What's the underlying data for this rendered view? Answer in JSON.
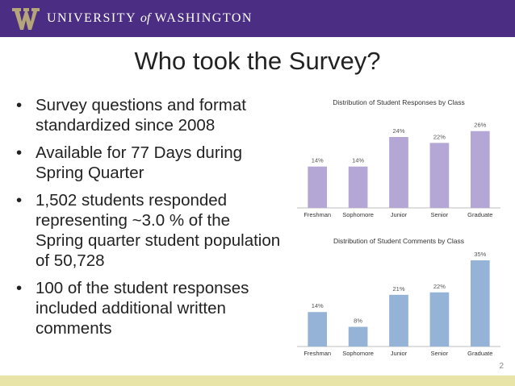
{
  "header": {
    "university_prefix": "UNIVERSITY",
    "university_of": "of",
    "university_suffix": "WASHINGTON",
    "bar_color": "#4b2e83",
    "logo_color": "#b7a57a"
  },
  "slide": {
    "title": "Who took the Survey?",
    "bullets": [
      "Survey questions and format standardized since 2008",
      "Available for 77 Days during Spring Quarter",
      "1,502 students responded representing ~3.0 % of the Spring quarter student population of 50,728",
      "100 of the student responses included additional written comments"
    ],
    "page_number": "2",
    "footer_color": "#e8e3a7"
  },
  "chart_data": [
    {
      "type": "bar",
      "title": "Distribution of Student Responses by Class",
      "categories": [
        "Freshman",
        "Sophomore",
        "Junior",
        "Senior",
        "Graduate"
      ],
      "values": [
        14,
        14,
        24,
        22,
        26
      ],
      "labels": [
        "14%",
        "14%",
        "24%",
        "22%",
        "26%"
      ],
      "ylim": [
        0,
        30
      ],
      "color": "#b4a7d6",
      "grid": false,
      "legend": "none"
    },
    {
      "type": "bar",
      "title": "Distribution of Student Comments by Class",
      "categories": [
        "Freshman",
        "Sophomore",
        "Junior",
        "Senior",
        "Graduate"
      ],
      "values": [
        14,
        8,
        21,
        22,
        35
      ],
      "labels": [
        "14%",
        "8%",
        "21%",
        "22%",
        "35%"
      ],
      "ylim": [
        0,
        36
      ],
      "color": "#95b3d7",
      "grid": false,
      "legend": "none"
    }
  ]
}
